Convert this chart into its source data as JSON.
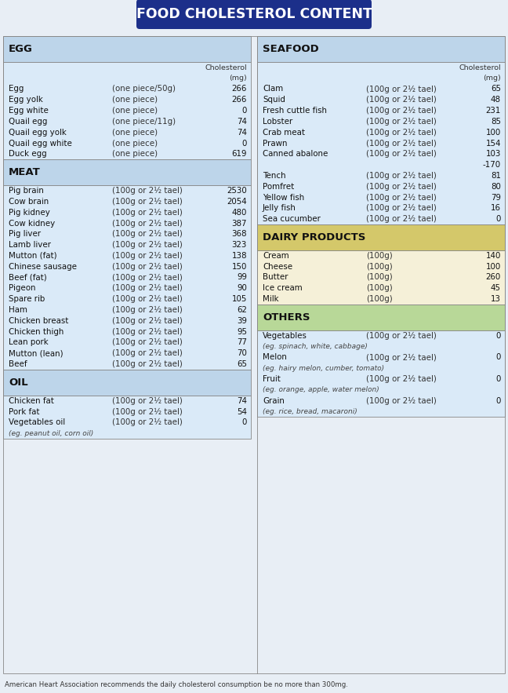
{
  "title": "FOOD CHOLESTEROL CONTENT",
  "title_bg": "#1c2f8a",
  "title_color": "#ffffff",
  "page_bg": "#e8eef5",
  "left_bg": "#daeaf8",
  "right_bg": "#daeaf8",
  "dairy_bg": "#f5f2dc",
  "others_bg": "#daeaf8",
  "egg_header_bg": "#c2daf0",
  "meat_header_bg": "#c2daf0",
  "oil_header_bg": "#c2daf0",
  "seafood_header_bg": "#c2daf0",
  "dairy_header_bg": "#e0d88a",
  "others_header_bg": "#c8d898",
  "footer": "American Heart Association recommends the daily cholesterol consumption be no more than 300mg.",
  "left_sections": [
    {
      "name": "EGG",
      "bg": "#daeaf8",
      "header_bg": "#bdd5ea",
      "show_col_header": true,
      "items": [
        {
          "food": "Egg",
          "unit": "(one piece/50g)",
          "value": "266"
        },
        {
          "food": "Egg yolk",
          "unit": "(one piece)",
          "value": "266"
        },
        {
          "food": "Egg white",
          "unit": "(one piece)",
          "value": "0"
        },
        {
          "food": "Quail egg",
          "unit": "(one piece/11g)",
          "value": "74"
        },
        {
          "food": "Quail egg yolk",
          "unit": "(one piece)",
          "value": "74"
        },
        {
          "food": "Quail egg white",
          "unit": "(one piece)",
          "value": "0"
        },
        {
          "food": "Duck egg",
          "unit": "(one piece)",
          "value": "619"
        }
      ]
    },
    {
      "name": "MEAT",
      "bg": "#daeaf8",
      "header_bg": "#bdd5ea",
      "show_col_header": false,
      "items": [
        {
          "food": "Pig brain",
          "unit": "(100g or 2½ tael)",
          "value": "2530"
        },
        {
          "food": "Cow brain",
          "unit": "(100g or 2½ tael)",
          "value": "2054"
        },
        {
          "food": "Pig kidney",
          "unit": "(100g or 2½ tael)",
          "value": "480"
        },
        {
          "food": "Cow kidney",
          "unit": "(100g or 2½ tael)",
          "value": "387"
        },
        {
          "food": "Pig liver",
          "unit": "(100g or 2½ tael)",
          "value": "368"
        },
        {
          "food": "Lamb liver",
          "unit": "(100g or 2½ tael)",
          "value": "323"
        },
        {
          "food": "Mutton (fat)",
          "unit": "(100g or 2½ tael)",
          "value": "138"
        },
        {
          "food": "Chinese sausage",
          "unit": "(100g or 2½ tael)",
          "value": "150"
        },
        {
          "food": "Beef (fat)",
          "unit": "(100g or 2½ tael)",
          "value": "99"
        },
        {
          "food": "Pigeon",
          "unit": "(100g or 2½ tael)",
          "value": "90"
        },
        {
          "food": "Spare rib",
          "unit": "(100g or 2½ tael)",
          "value": "105"
        },
        {
          "food": "Ham",
          "unit": "(100g or 2½ tael)",
          "value": "62"
        },
        {
          "food": "Chicken breast",
          "unit": "(100g or 2½ tael)",
          "value": "39"
        },
        {
          "food": "Chicken thigh",
          "unit": "(100g or 2½ tael)",
          "value": "95"
        },
        {
          "food": "Lean pork",
          "unit": "(100g or 2½ tael)",
          "value": "77"
        },
        {
          "food": "Mutton (lean)",
          "unit": "(100g or 2½ tael)",
          "value": "70"
        },
        {
          "food": "Beef",
          "unit": "(100g or 2½ tael)",
          "value": "65"
        }
      ]
    },
    {
      "name": "OIL",
      "bg": "#daeaf8",
      "header_bg": "#bdd5ea",
      "show_col_header": false,
      "items": [
        {
          "food": "Chicken fat",
          "unit": "(100g or 2½ tael)",
          "value": "74"
        },
        {
          "food": "Pork fat",
          "unit": "(100g or 2½ tael)",
          "value": "54"
        },
        {
          "food": "Vegetables oil",
          "unit": "(100g or 2½ tael)",
          "value": "0"
        },
        {
          "food": "(eg. peanut oil, corn oil)",
          "unit": "",
          "value": ""
        }
      ]
    }
  ],
  "right_sections": [
    {
      "name": "SEAFOOD",
      "bg": "#daeaf8",
      "header_bg": "#bdd5ea",
      "show_col_header": true,
      "items": [
        {
          "food": "Clam",
          "unit": "(100g or 2½ tael)",
          "value": "65"
        },
        {
          "food": "Squid",
          "unit": "(100g or 2½ tael)",
          "value": "48"
        },
        {
          "food": "Fresh cuttle fish",
          "unit": "(100g or 2½ tael)",
          "value": "231"
        },
        {
          "food": "Lobster",
          "unit": "(100g or 2½ tael)",
          "value": "85"
        },
        {
          "food": "Crab meat",
          "unit": "(100g or 2½ tael)",
          "value": "100"
        },
        {
          "food": "Prawn",
          "unit": "(100g or 2½ tael)",
          "value": "154"
        },
        {
          "food": "Canned abalone",
          "unit": "(100g or 2½ tael)",
          "value": "103"
        },
        {
          "food": "",
          "unit": "",
          "value": "-170"
        },
        {
          "food": "Tench",
          "unit": "(100g or 2½ tael)",
          "value": "81"
        },
        {
          "food": "Pomfret",
          "unit": "(100g or 2½ tael)",
          "value": "80"
        },
        {
          "food": "Yellow fish",
          "unit": "(100g or 2½ tael)",
          "value": "79"
        },
        {
          "food": "Jelly fish",
          "unit": "(100g or 2½ tael)",
          "value": "16"
        },
        {
          "food": "Sea cucumber",
          "unit": "(100g or 2½ tael)",
          "value": "0"
        }
      ]
    },
    {
      "name": "DAIRY PRODUCTS",
      "bg": "#f5f0d8",
      "header_bg": "#d4c86a",
      "show_col_header": false,
      "items": [
        {
          "food": "Cream",
          "unit": "(100g)",
          "value": "140"
        },
        {
          "food": "Cheese",
          "unit": "(100g)",
          "value": "100"
        },
        {
          "food": "Butter",
          "unit": "(100g)",
          "value": "260"
        },
        {
          "food": "Ice cream",
          "unit": "(100g)",
          "value": "45"
        },
        {
          "food": "Milk",
          "unit": "(100g)",
          "value": "13"
        }
      ]
    },
    {
      "name": "OTHERS",
      "bg": "#daeaf8",
      "header_bg": "#b8d898",
      "show_col_header": false,
      "items": [
        {
          "food": "Vegetables",
          "unit": "(100g or 2½ tael)",
          "value": "0"
        },
        {
          "food": "(eg. spinach, white, cabbage)",
          "unit": "",
          "value": ""
        },
        {
          "food": "Melon",
          "unit": "(100g or 2½ tael)",
          "value": "0"
        },
        {
          "food": "(eg. hairy melon, cumber, tomato)",
          "unit": "",
          "value": ""
        },
        {
          "food": "Fruit",
          "unit": "(100g or 2½ tael)",
          "value": "0"
        },
        {
          "food": "(eg. orange, apple, water melon)",
          "unit": "",
          "value": ""
        },
        {
          "food": "Grain",
          "unit": "(100g or 2½ tael)",
          "value": "0"
        },
        {
          "food": "(eg. rice, bread, macaroni)",
          "unit": "",
          "value": ""
        }
      ]
    }
  ]
}
